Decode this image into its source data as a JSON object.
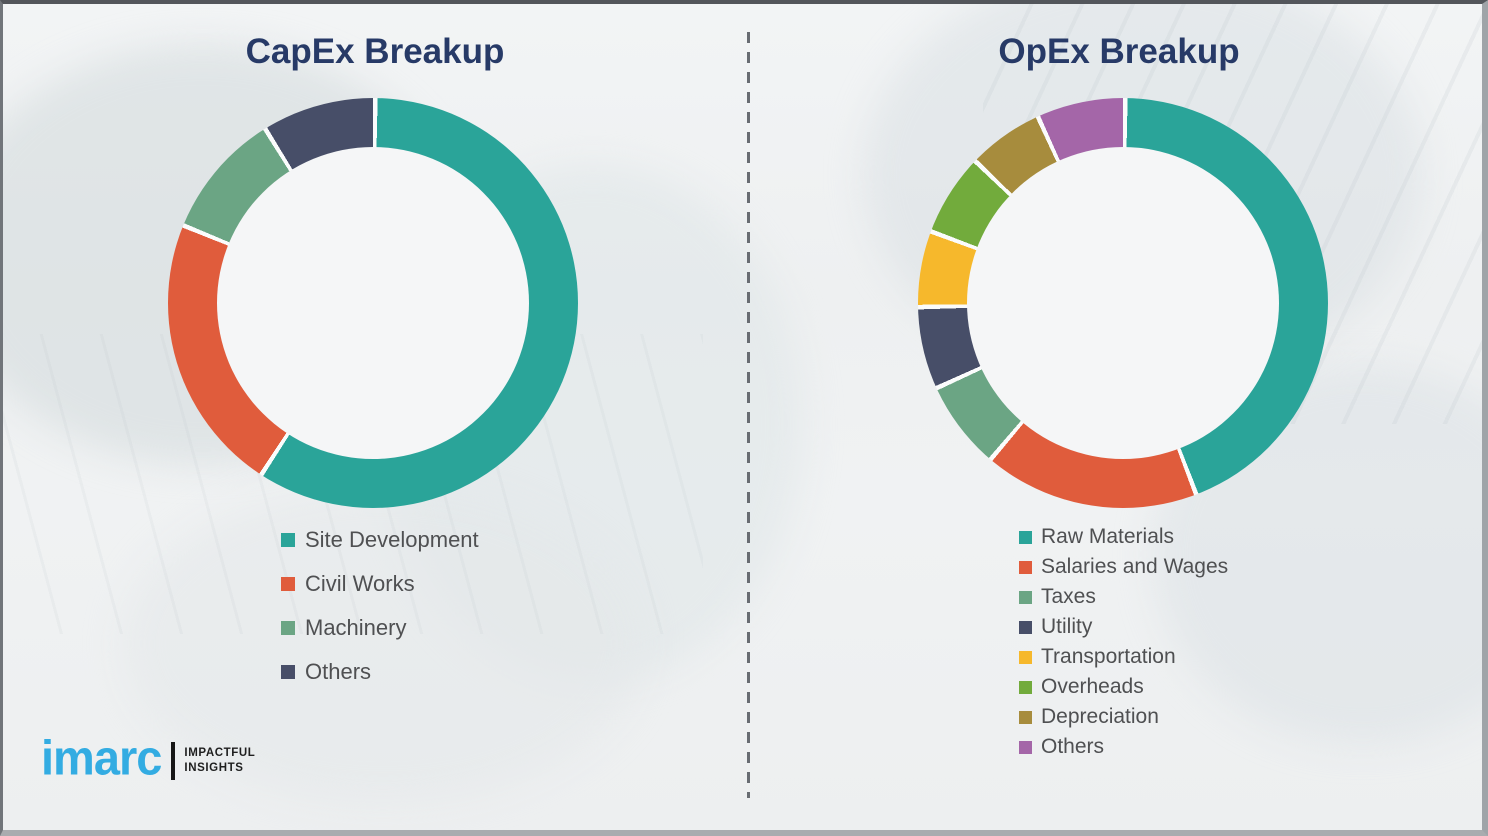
{
  "colors": {
    "title_navy": "#273a67",
    "legend_text": "#4f5052",
    "logo_blue": "#33ace2",
    "segment_gap_white": "#fbfcfc"
  },
  "logo": {
    "brand": "imarc",
    "tagline_line1": "IMPACTFUL",
    "tagline_line2": "INSIGHTS"
  },
  "chart_data": [
    {
      "type": "pie",
      "subtype": "donut",
      "title": "CapEx Breakup",
      "categories": [
        "Site Development",
        "Civil Works",
        "Machinery",
        "Others"
      ],
      "values": [
        59,
        22,
        10,
        9
      ],
      "unit": "percent-of-ring (estimated from arc angles, no labels shown)",
      "colors": [
        "#2aa499",
        "#e05c3c",
        "#6ba584",
        "#474e68"
      ],
      "start_angle_deg": 0,
      "direction": "clockwise",
      "donut_hole_ratio": 0.76,
      "legend_position": "below-left",
      "data_labels": false
    },
    {
      "type": "pie",
      "subtype": "donut",
      "title": "OpEx Breakup",
      "categories": [
        "Raw Materials",
        "Salaries and Wages",
        "Taxes",
        "Utility",
        "Transportation",
        "Overheads",
        "Depreciation",
        "Others"
      ],
      "values": [
        44,
        17,
        7,
        6.5,
        6,
        6.5,
        6,
        7
      ],
      "unit": "percent-of-ring (estimated from arc angles, no labels shown)",
      "colors": [
        "#2aa499",
        "#e05c3c",
        "#6ba584",
        "#474e68",
        "#f6b82c",
        "#72ab3c",
        "#a78c3d",
        "#a466a8"
      ],
      "start_angle_deg": 0,
      "direction": "clockwise",
      "donut_hole_ratio": 0.76,
      "legend_position": "below-left",
      "data_labels": false
    }
  ]
}
